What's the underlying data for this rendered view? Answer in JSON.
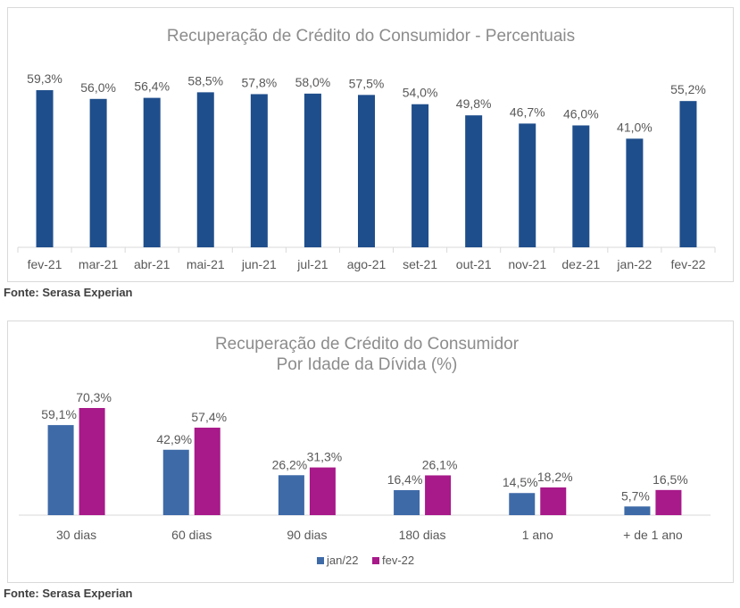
{
  "chart_data": [
    {
      "type": "bar",
      "title": "Recuperação de Crédito do Consumidor - Percentuais",
      "categories": [
        "fev-21",
        "mar-21",
        "abr-21",
        "mai-21",
        "jun-21",
        "jul-21",
        "ago-21",
        "set-21",
        "out-21",
        "nov-21",
        "dez-21",
        "jan-22",
        "fev-22"
      ],
      "values": [
        59.3,
        56.0,
        56.4,
        58.5,
        57.8,
        58.0,
        57.5,
        54.0,
        49.8,
        46.7,
        46.0,
        41.0,
        55.2
      ],
      "labels": [
        "59,3%",
        "56,0%",
        "56,4%",
        "58,5%",
        "57,8%",
        "58,0%",
        "57,5%",
        "54,0%",
        "49,8%",
        "46,7%",
        "46,0%",
        "41,0%",
        "55,2%"
      ],
      "color": "#1f4e8c",
      "ylim": [
        0,
        60
      ],
      "xlabel": "",
      "ylabel": ""
    },
    {
      "type": "bar",
      "title": [
        "Recuperação de Crédito do Consumidor",
        "Por Idade da Dívida (%)"
      ],
      "categories": [
        "30 dias",
        "60 dias",
        "90 dias",
        "180 dias",
        "1 ano",
        "+ de 1 ano"
      ],
      "series": [
        {
          "name": "jan/22",
          "color": "#3e6aa8",
          "values": [
            59.1,
            42.9,
            26.2,
            16.4,
            14.5,
            5.7
          ],
          "labels": [
            "59,1%",
            "42,9%",
            "26,2%",
            "16,4%",
            "14,5%",
            "5,7%"
          ]
        },
        {
          "name": "fev-22",
          "color": "#a8198a",
          "values": [
            70.3,
            57.4,
            31.3,
            26.1,
            18.2,
            16.5
          ],
          "labels": [
            "70,3%",
            "57,4%",
            "31,3%",
            "26,1%",
            "18,2%",
            "16,5%"
          ]
        }
      ],
      "ylim": [
        0,
        75
      ],
      "legend": "bottom",
      "xlabel": "",
      "ylabel": ""
    }
  ],
  "sources": [
    "Fonte: Serasa Experian",
    "Fonte: Serasa Experian"
  ]
}
